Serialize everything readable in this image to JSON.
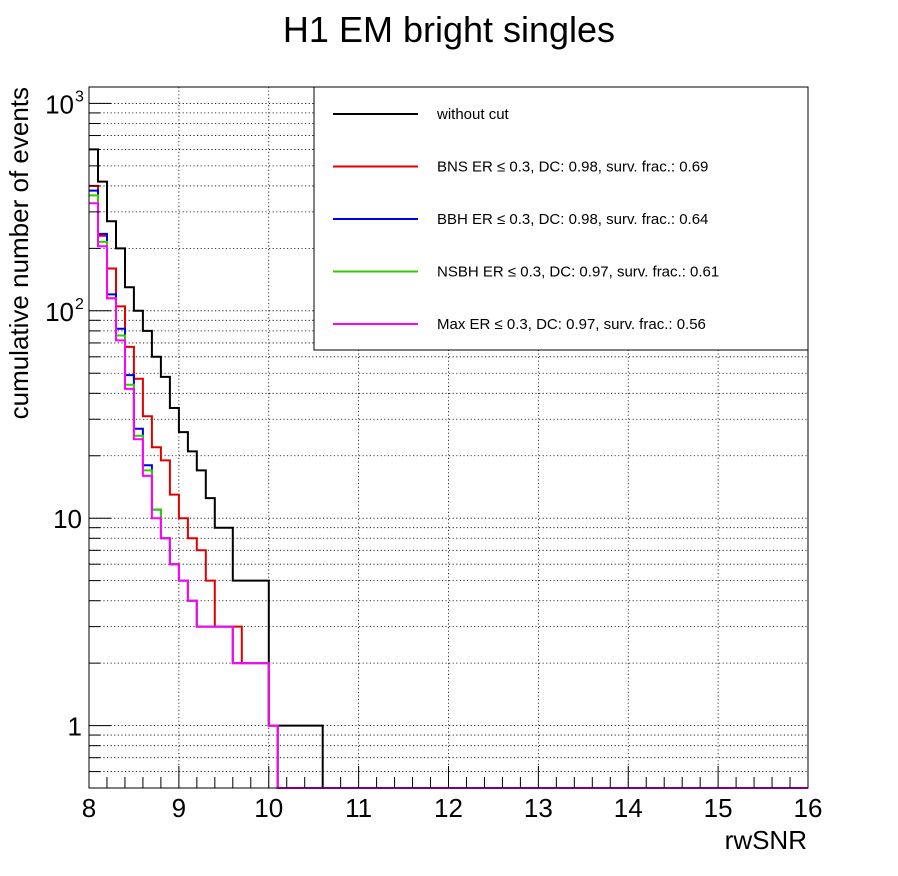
{
  "chart_data": {
    "type": "line",
    "step": true,
    "title": "H1 EM bright singles",
    "xlabel": "rwSNR",
    "ylabel": "cumulative number of events",
    "xlim": [
      8,
      16
    ],
    "ylim": [
      0.5,
      1200
    ],
    "ylog": true,
    "grid": true,
    "legend_position": "top-right",
    "x_tick_labels": [
      "8",
      "9",
      "10",
      "11",
      "12",
      "13",
      "14",
      "15",
      "16"
    ],
    "y_tick_labels": [
      {
        "value": 1000,
        "base": "10",
        "exp": "3"
      },
      {
        "value": 100,
        "base": "10",
        "exp": "2"
      },
      {
        "value": 10,
        "base": "10",
        "exp": ""
      },
      {
        "value": 1,
        "base": "1",
        "exp": ""
      }
    ],
    "bin_edges": [
      8.0,
      8.1,
      8.2,
      8.3,
      8.4,
      8.5,
      8.6,
      8.7,
      8.8,
      8.9,
      9.0,
      9.1,
      9.2,
      9.3,
      9.4,
      9.5,
      9.6,
      9.7,
      9.8,
      9.9,
      10.0,
      10.1,
      10.2,
      10.3,
      10.4,
      10.5,
      10.6
    ],
    "series": [
      {
        "name": "without cut",
        "color": "#000000",
        "values": [
          600,
          420,
          270,
          200,
          130,
          100,
          80,
          60,
          48,
          34,
          26,
          21,
          17,
          12.5,
          9,
          9,
          5,
          5,
          5,
          5,
          1,
          1,
          1,
          1,
          1,
          1
        ]
      },
      {
        "name": "BNS ER ≤ 0.3, DC: 0.98, surv. frac.: 0.69",
        "color": "#e00000",
        "values": [
          400,
          230,
          160,
          105,
          67,
          47,
          31,
          22,
          19,
          13,
          10,
          8,
          7,
          5,
          3,
          3,
          3,
          2,
          2,
          2,
          1
        ]
      },
      {
        "name": "BBH ER ≤ 0.3, DC: 0.98, surv. frac.: 0.64",
        "color": "#0000e0",
        "values": [
          380,
          235,
          120,
          82,
          49,
          27,
          18,
          11,
          8,
          6,
          5,
          4,
          3,
          3,
          3,
          3,
          2,
          2,
          2,
          2,
          1
        ]
      },
      {
        "name": "NSBH ER ≤ 0.3, DC: 0.97, surv. frac.: 0.61",
        "color": "#33cc00",
        "values": [
          360,
          215,
          115,
          76,
          44,
          25,
          17,
          11,
          8,
          6,
          5,
          4,
          3,
          3,
          3,
          3,
          2,
          2,
          2,
          2,
          1
        ]
      },
      {
        "name": "Max ER ≤ 0.3, DC: 0.97, surv. frac.: 0.56",
        "color": "#ff00ff",
        "values": [
          330,
          205,
          115,
          72,
          42,
          24,
          16,
          10,
          8,
          6,
          5,
          4,
          3,
          3,
          3,
          3,
          2,
          2,
          2,
          2,
          1
        ]
      }
    ]
  }
}
